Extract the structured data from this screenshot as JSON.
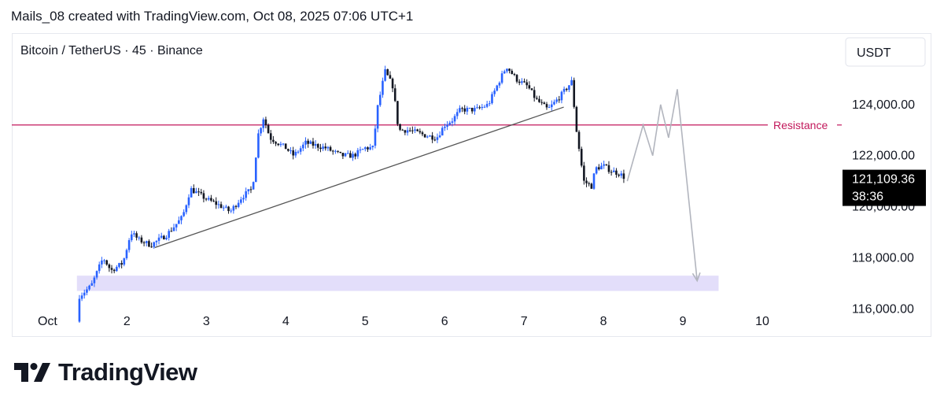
{
  "header": {
    "text": "Mails_08 created with TradingView.com, Oct 08, 2025 07:06 UTC+1"
  },
  "brand": {
    "name": "TradingView"
  },
  "colors": {
    "candle_up": "#2962ff",
    "candle_down": "#131722",
    "resistance": "#c2185b",
    "support_zone": "#e3defa",
    "trendline": "#555555",
    "projection": "#b2b5be",
    "price_box": "#000000"
  },
  "chart_data": {
    "type": "candlestick",
    "title": "Bitcoin / TetherUS · 45 · Binance",
    "currency": "USDT",
    "x_ticks": [
      {
        "value": 1,
        "label": "Oct"
      },
      {
        "value": 2,
        "label": "2"
      },
      {
        "value": 3,
        "label": "3"
      },
      {
        "value": 4,
        "label": "4"
      },
      {
        "value": 5,
        "label": "5"
      },
      {
        "value": 6,
        "label": "6"
      },
      {
        "value": 7,
        "label": "7"
      },
      {
        "value": 8,
        "label": "8"
      },
      {
        "value": 9,
        "label": "9"
      },
      {
        "value": 10,
        "label": "10"
      }
    ],
    "y_ticks": [
      {
        "value": 116000,
        "label": "116,000.00"
      },
      {
        "value": 118000,
        "label": "118,000.00"
      },
      {
        "value": 120000,
        "label": "120,000.00"
      },
      {
        "value": 122000,
        "label": "122,000.00"
      },
      {
        "value": 124000,
        "label": "124,000.00"
      }
    ],
    "xlim": [
      0.55,
      11.05
    ],
    "ylim": [
      114900,
      126800
    ],
    "grid": false,
    "last_price": {
      "label": "121,109.36",
      "countdown": "38:36",
      "value": 121109.36
    },
    "price_path": [
      [
        1.37,
        115.5
      ],
      [
        1.4,
        116.5
      ],
      [
        1.55,
        116.9
      ],
      [
        1.7,
        118.0
      ],
      [
        1.8,
        117.5
      ],
      [
        1.95,
        117.8
      ],
      [
        2.05,
        119.0
      ],
      [
        2.15,
        118.7
      ],
      [
        2.3,
        118.5
      ],
      [
        2.5,
        118.9
      ],
      [
        2.7,
        119.6
      ],
      [
        2.8,
        120.7
      ],
      [
        3.0,
        120.3
      ],
      [
        3.2,
        120.0
      ],
      [
        3.3,
        119.8
      ],
      [
        3.45,
        120.4
      ],
      [
        3.58,
        120.7
      ],
      [
        3.65,
        122.8
      ],
      [
        3.72,
        123.5
      ],
      [
        3.8,
        122.7
      ],
      [
        4.0,
        122.3
      ],
      [
        4.1,
        122.0
      ],
      [
        4.25,
        122.5
      ],
      [
        4.5,
        122.3
      ],
      [
        4.7,
        122.0
      ],
      [
        4.85,
        122.0
      ],
      [
        5.0,
        122.3
      ],
      [
        5.1,
        122.3
      ],
      [
        5.15,
        123.8
      ],
      [
        5.25,
        125.3
      ],
      [
        5.35,
        124.7
      ],
      [
        5.42,
        123.0
      ],
      [
        5.55,
        123.0
      ],
      [
        5.75,
        122.8
      ],
      [
        5.9,
        122.7
      ],
      [
        6.0,
        123.2
      ],
      [
        6.1,
        123.4
      ],
      [
        6.2,
        123.8
      ],
      [
        6.4,
        123.8
      ],
      [
        6.55,
        124.0
      ],
      [
        6.7,
        125.0
      ],
      [
        6.78,
        125.5
      ],
      [
        6.9,
        125.0
      ],
      [
        7.05,
        124.7
      ],
      [
        7.15,
        124.2
      ],
      [
        7.3,
        123.8
      ],
      [
        7.45,
        124.3
      ],
      [
        7.6,
        124.9
      ],
      [
        7.66,
        123.0
      ],
      [
        7.72,
        121.7
      ],
      [
        7.75,
        121.0
      ],
      [
        7.85,
        120.8
      ],
      [
        7.9,
        121.5
      ],
      [
        8.0,
        121.6
      ],
      [
        8.1,
        121.4
      ],
      [
        8.2,
        121.3
      ],
      [
        8.28,
        121.11
      ]
    ],
    "annotations": {
      "resistance": {
        "label": "Resistance",
        "value": 123200
      },
      "support_zone": {
        "from": 116700,
        "to": 117300,
        "x_start": 1.37,
        "x_end": 9.45
      },
      "trendline": {
        "from": [
          2.35,
          118.4
        ],
        "to": [
          7.5,
          123.9
        ]
      },
      "projection": [
        [
          8.3,
          121.0
        ],
        [
          8.5,
          123.2
        ],
        [
          8.62,
          122.0
        ],
        [
          8.72,
          124.0
        ],
        [
          8.82,
          122.7
        ],
        [
          8.93,
          124.6
        ],
        [
          9.18,
          117.1
        ]
      ]
    }
  }
}
